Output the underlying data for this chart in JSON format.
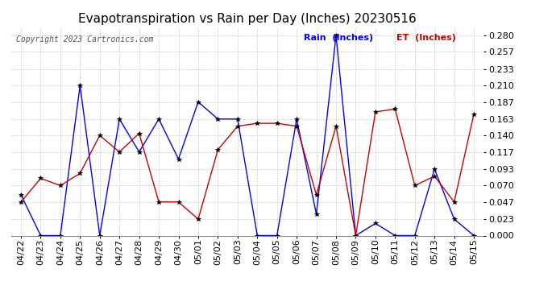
{
  "title": "Evapotranspiration vs Rain per Day (Inches) 20230516",
  "copyright": "Copyright 2023 Cartronics.com",
  "legend_rain": "Rain  (Inches)",
  "legend_et": "ET  (Inches)",
  "dates": [
    "04/22",
    "04/23",
    "04/24",
    "04/25",
    "04/26",
    "04/27",
    "04/28",
    "04/29",
    "04/30",
    "05/01",
    "05/02",
    "05/03",
    "05/04",
    "05/05",
    "05/06",
    "05/07",
    "05/08",
    "05/09",
    "05/10",
    "05/11",
    "05/12",
    "05/13",
    "05/14",
    "05/15"
  ],
  "rain": [
    0.057,
    0.0,
    0.0,
    0.21,
    0.0,
    0.163,
    0.117,
    0.163,
    0.107,
    0.187,
    0.163,
    0.163,
    0.0,
    0.0,
    0.163,
    0.03,
    0.28,
    0.0,
    0.017,
    0.0,
    0.0,
    0.093,
    0.023,
    0.0
  ],
  "et": [
    0.047,
    0.08,
    0.07,
    0.087,
    0.14,
    0.117,
    0.143,
    0.047,
    0.047,
    0.023,
    0.12,
    0.153,
    0.157,
    0.157,
    0.153,
    0.057,
    0.153,
    0.0,
    0.173,
    0.177,
    0.07,
    0.083,
    0.047,
    0.17
  ],
  "ylim_min": 0.0,
  "ylim_max": 0.2915,
  "yticks": [
    0.0,
    0.023,
    0.047,
    0.07,
    0.093,
    0.117,
    0.14,
    0.163,
    0.187,
    0.21,
    0.233,
    0.257,
    0.28
  ],
  "rain_color": "#0000ff",
  "et_color": "#cc0000",
  "marker_color": "#000000",
  "title_fontsize": 11,
  "tick_fontsize": 8,
  "bg_color": "#ffffff",
  "grid_color": "#cccccc"
}
